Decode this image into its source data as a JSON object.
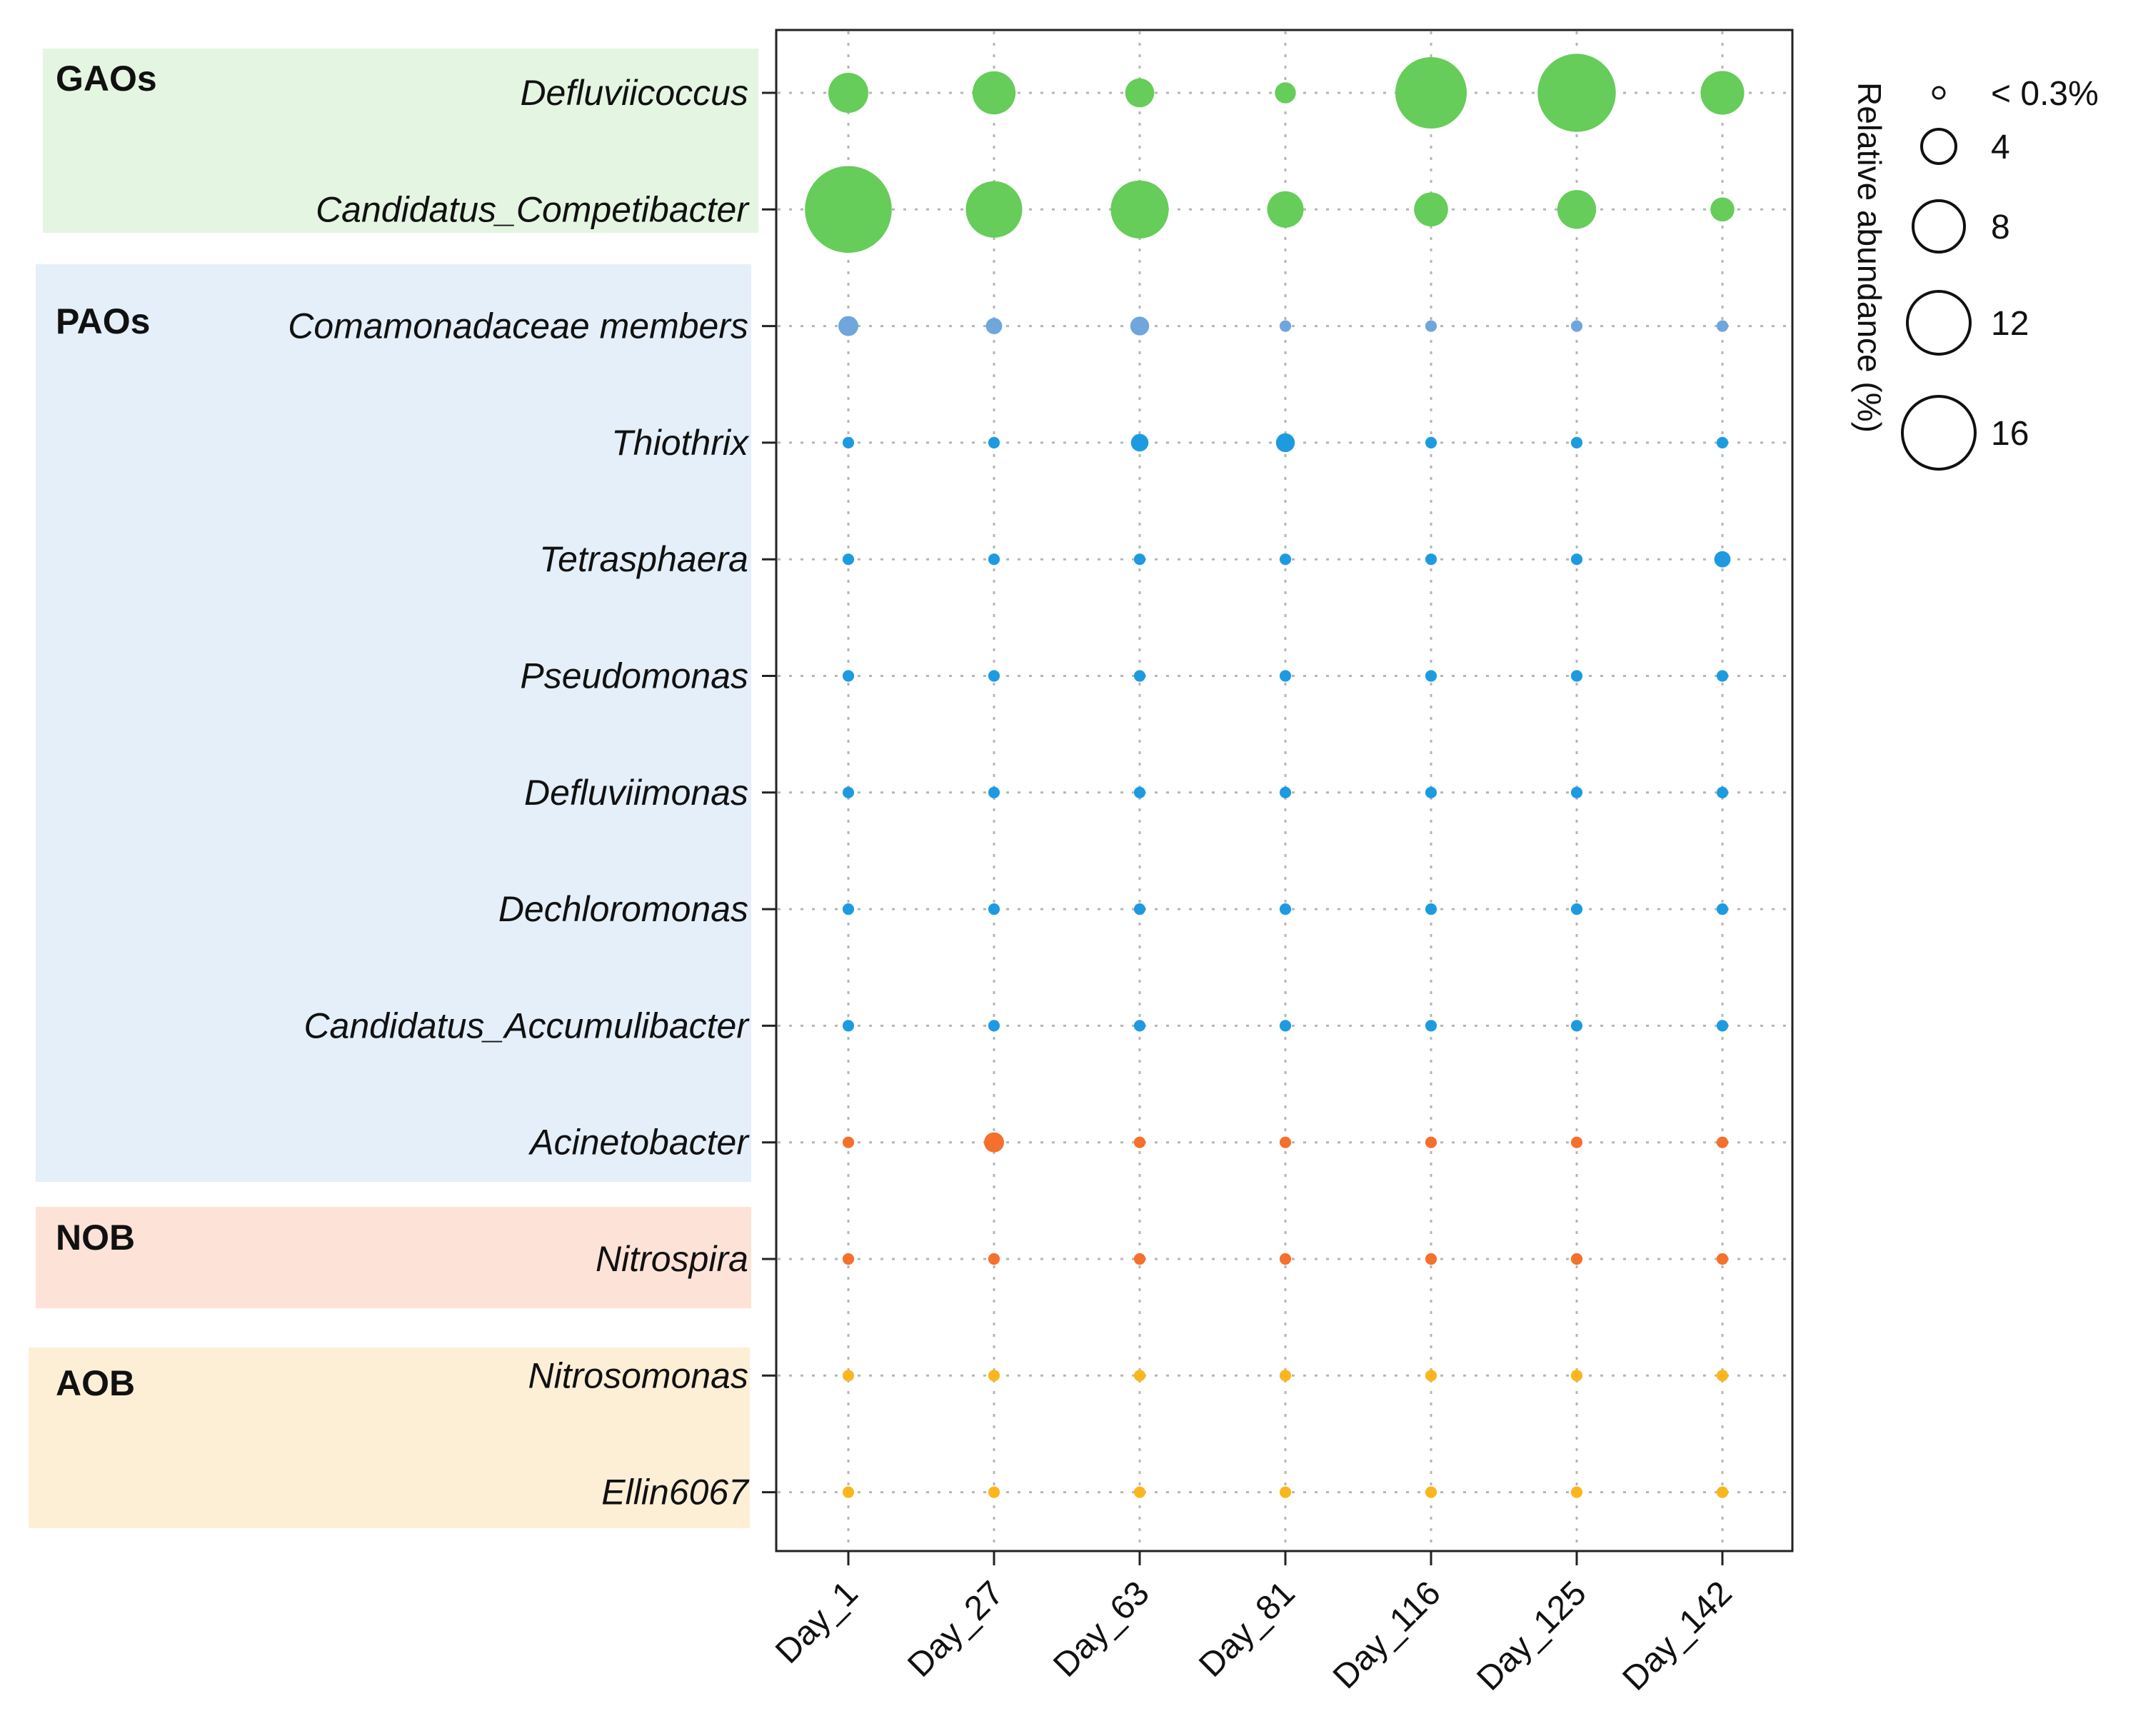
{
  "chart_data": {
    "type": "scatter",
    "subtype": "bubble",
    "x": [
      "Day_1",
      "Day_27",
      "Day_63",
      "Day_81",
      "Day_116",
      "Day_125",
      "Day_142"
    ],
    "groups": [
      {
        "name": "GAOs",
        "color": "#e4f5e2",
        "genera": [
          "Defluviicoccus",
          "Candidatus_Competibacter"
        ]
      },
      {
        "name": "PAOs",
        "color": "#e4eff9",
        "genera": [
          "Comamonadaceae members",
          "Thiothrix",
          "Tetrasphaera",
          "Pseudomonas",
          "Defluviimonas",
          "Dechloromonas",
          "Candidatus_Accumulibacter",
          "Acinetobacter"
        ]
      },
      {
        "name": "NOB",
        "color": "#fde3d7",
        "genera": [
          "Nitrospira"
        ]
      },
      {
        "name": "AOB",
        "color": "#fdefd6",
        "genera": [
          "Nitrosomonas",
          "Ellin6067"
        ]
      }
    ],
    "series": [
      {
        "name": "Defluviicoccus",
        "color": "#66cc5a",
        "values": [
          3.6,
          4.2,
          1.9,
          1.0,
          11.5,
          13.8,
          4.3
        ]
      },
      {
        "name": "Candidatus_Competibacter",
        "color": "#66cc5a",
        "values": [
          17.0,
          7.2,
          7.6,
          3.0,
          2.6,
          3.4,
          1.3
        ]
      },
      {
        "name": "Comamonadaceae members",
        "color": "#6fa6db",
        "values": [
          0.9,
          0.6,
          0.8,
          0.3,
          0.3,
          0.3,
          0.3
        ]
      },
      {
        "name": "Thiothrix",
        "color": "#1e9be0",
        "values": [
          0.3,
          0.3,
          0.7,
          0.8,
          0.3,
          0.3,
          0.3
        ]
      },
      {
        "name": "Tetrasphaera",
        "color": "#1e9be0",
        "values": [
          0.3,
          0.3,
          0.3,
          0.3,
          0.3,
          0.3,
          0.6
        ]
      },
      {
        "name": "Pseudomonas",
        "color": "#1e9be0",
        "values": [
          0.3,
          0.3,
          0.3,
          0.3,
          0.3,
          0.3,
          0.3
        ]
      },
      {
        "name": "Defluviimonas",
        "color": "#1e9be0",
        "values": [
          0.3,
          0.3,
          0.3,
          0.3,
          0.3,
          0.3,
          0.3
        ]
      },
      {
        "name": "Dechloromonas",
        "color": "#1e9be0",
        "values": [
          0.3,
          0.3,
          0.3,
          0.3,
          0.3,
          0.3,
          0.3
        ]
      },
      {
        "name": "Candidatus_Accumulibacter",
        "color": "#1e9be0",
        "values": [
          0.3,
          0.3,
          0.3,
          0.3,
          0.3,
          0.3,
          0.3
        ]
      },
      {
        "name": "Acinetobacter",
        "color": "#f4702c",
        "values": [
          0.3,
          0.9,
          0.3,
          0.3,
          0.3,
          0.3,
          0.3
        ]
      },
      {
        "name": "Nitrospira",
        "color": "#f4702c",
        "values": [
          0.3,
          0.3,
          0.3,
          0.3,
          0.3,
          0.3,
          0.3
        ]
      },
      {
        "name": "Nitrosomonas",
        "color": "#fbb61d",
        "values": [
          0.3,
          0.3,
          0.3,
          0.3,
          0.3,
          0.3,
          0.3
        ]
      },
      {
        "name": "Ellin6067",
        "color": "#fbb61d",
        "values": [
          0.3,
          0.3,
          0.3,
          0.3,
          0.3,
          0.3,
          0.3
        ]
      }
    ],
    "size_legend": {
      "title": "Relative abundance (%)",
      "entries": [
        {
          "label": "< 0.3%",
          "value": 0.3
        },
        {
          "label": "4",
          "value": 4
        },
        {
          "label": "8",
          "value": 8
        },
        {
          "label": "12",
          "value": 12
        },
        {
          "label": "16",
          "value": 16
        }
      ]
    },
    "grid": true,
    "grid_style": "dotted"
  }
}
